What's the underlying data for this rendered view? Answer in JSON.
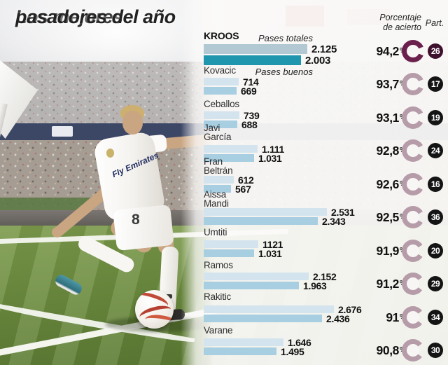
{
  "title": {
    "line1": "Los mejores",
    "line2": "pasadores del año"
  },
  "headers": {
    "totals_series": "Pases totales",
    "good_series": "Pases buenos",
    "accuracy_line1": "Porcentaje",
    "accuracy_line2": "de acierto",
    "participation": "Part.",
    "percent_symbol": "%"
  },
  "photo": {
    "shirt_text": "Fly Emirates",
    "shorts_number": "8"
  },
  "colors": {
    "bar_totals": "#d3e4ee",
    "bar_good": "#a8cee1",
    "bar_totals_highlight": "#b2c8d3",
    "bar_good_highlight": "#1f96ad",
    "donut": "#b69ca9",
    "donut_highlight": "#6b1f4c",
    "badge": "#141414",
    "badge_highlight": "#40112e"
  },
  "chart_data": {
    "type": "bar",
    "orientation": "horizontal",
    "title": "Los mejores pasadores del año",
    "series_labels": [
      "Pases totales",
      "Pases buenos"
    ],
    "x_max": 2676,
    "players": [
      {
        "name": "KROOS",
        "name_lines": [
          "KROOS"
        ],
        "pases_totales": 2125,
        "pases_totales_label": "2.125",
        "pases_buenos": 2003,
        "pases_buenos_label": "2.003",
        "accuracy_pct": 94.2,
        "accuracy_label": "94,2",
        "partidos": "26",
        "highlight": true
      },
      {
        "name": "Kovacic",
        "name_lines": [
          "Kovacic"
        ],
        "pases_totales": 714,
        "pases_totales_label": "714",
        "pases_buenos": 669,
        "pases_buenos_label": "669",
        "accuracy_pct": 93.7,
        "accuracy_label": "93,7",
        "partidos": "17",
        "highlight": false
      },
      {
        "name": "Ceballos",
        "name_lines": [
          "Ceballos"
        ],
        "pases_totales": 739,
        "pases_totales_label": "739",
        "pases_buenos": 688,
        "pases_buenos_label": "688",
        "accuracy_pct": 93.1,
        "accuracy_label": "93,1",
        "partidos": "19",
        "highlight": false
      },
      {
        "name": "Javi García",
        "name_lines": [
          "Javi",
          "García"
        ],
        "pases_totales": 1111,
        "pases_totales_label": "1.111",
        "pases_buenos": 1031,
        "pases_buenos_label": "1.031",
        "accuracy_pct": 92.8,
        "accuracy_label": "92,8",
        "partidos": "24",
        "highlight": false
      },
      {
        "name": "Fran Beltrán",
        "name_lines": [
          "Fran",
          "Beltrán"
        ],
        "pases_totales": 612,
        "pases_totales_label": "612",
        "pases_buenos": 567,
        "pases_buenos_label": "567",
        "accuracy_pct": 92.6,
        "accuracy_label": "92,6",
        "partidos": "16",
        "highlight": false
      },
      {
        "name": "Aissa Mandi",
        "name_lines": [
          "Aissa",
          "Mandi"
        ],
        "pases_totales": 2531,
        "pases_totales_label": "2.531",
        "pases_buenos": 2343,
        "pases_buenos_label": "2.343",
        "accuracy_pct": 92.5,
        "accuracy_label": "92,5",
        "partidos": "36",
        "highlight": false
      },
      {
        "name": "Umtiti",
        "name_lines": [
          "Umtiti"
        ],
        "pases_totales": 1121,
        "pases_totales_label": "1121",
        "pases_buenos": 1031,
        "pases_buenos_label": "1.031",
        "accuracy_pct": 91.9,
        "accuracy_label": "91,9",
        "partidos": "20",
        "highlight": false
      },
      {
        "name": "Ramos",
        "name_lines": [
          "Ramos"
        ],
        "pases_totales": 2152,
        "pases_totales_label": "2.152",
        "pases_buenos": 1963,
        "pases_buenos_label": "1.963",
        "accuracy_pct": 91.2,
        "accuracy_label": "91,2",
        "partidos": "29",
        "highlight": false
      },
      {
        "name": "Rakitic",
        "name_lines": [
          "Rakitic"
        ],
        "pases_totales": 2676,
        "pases_totales_label": "2.676",
        "pases_buenos": 2436,
        "pases_buenos_label": "2.436",
        "accuracy_pct": 91.0,
        "accuracy_label": "91",
        "partidos": "34",
        "highlight": false
      },
      {
        "name": "Varane",
        "name_lines": [
          "Varane"
        ],
        "pases_totales": 1646,
        "pases_totales_label": "1.646",
        "pases_buenos": 1495,
        "pases_buenos_label": "1.495",
        "accuracy_pct": 90.8,
        "accuracy_label": "90,8",
        "partidos": "30",
        "highlight": false
      }
    ]
  }
}
